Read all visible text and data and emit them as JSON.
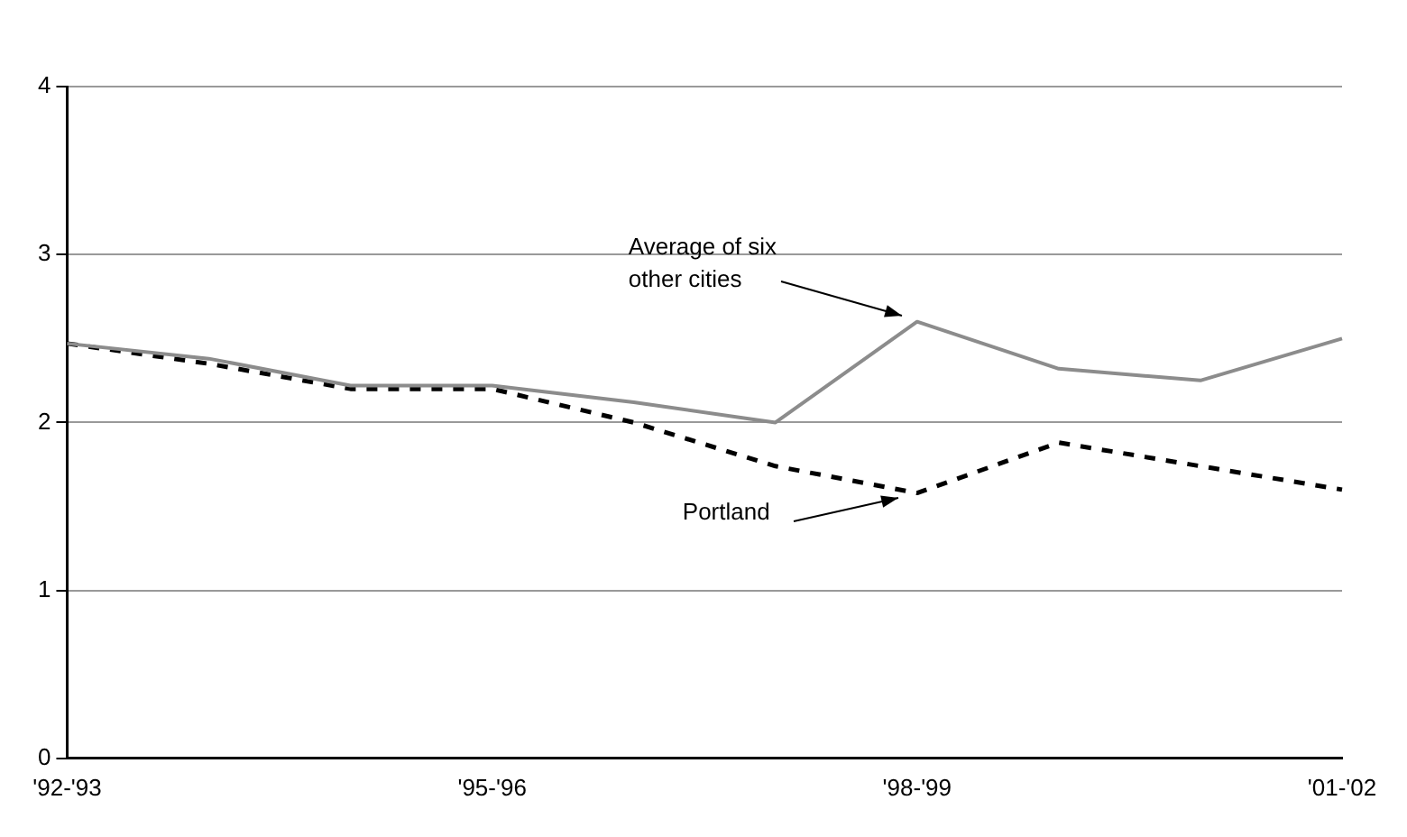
{
  "chart_data": {
    "type": "line",
    "categories": [
      "'92-'93",
      null,
      null,
      "'95-'96",
      null,
      null,
      "'98-'99",
      null,
      null,
      "'01-'02"
    ],
    "series": [
      {
        "name": "Average of six other cities",
        "color": "#8c8c8c",
        "line_style": "solid",
        "values": [
          2.47,
          2.38,
          2.22,
          2.22,
          2.12,
          2.0,
          2.6,
          2.32,
          2.25,
          2.5
        ]
      },
      {
        "name": "Portland",
        "color": "#000000",
        "line_style": "dashed",
        "values": [
          2.47,
          2.35,
          2.2,
          2.2,
          2.0,
          1.74,
          1.58,
          1.88,
          1.74,
          1.6
        ]
      }
    ],
    "ylim": [
      0,
      4
    ],
    "yticks": [
      0,
      1,
      2,
      3,
      4
    ],
    "grid": "y",
    "marker": "none"
  }
}
